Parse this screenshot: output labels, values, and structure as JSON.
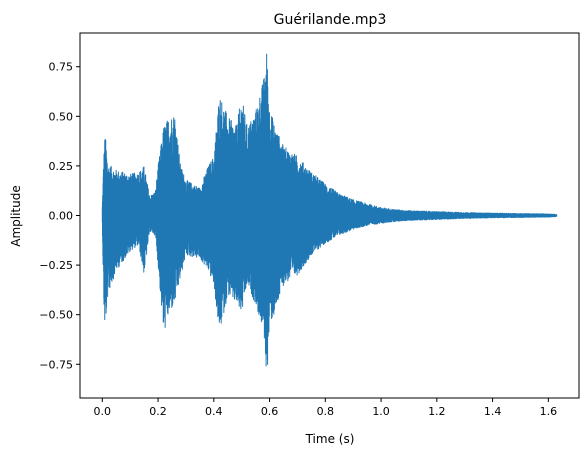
{
  "chart_data": {
    "type": "line",
    "title": "Guérilande.mp3",
    "xlabel": "Time (s)",
    "ylabel": "Amplitude",
    "xlim": [
      -0.08,
      1.71
    ],
    "ylim": [
      -0.92,
      0.92
    ],
    "x_ticks": [
      0.0,
      0.2,
      0.4,
      0.6,
      0.8,
      1.0,
      1.2,
      1.4,
      1.6
    ],
    "x_tick_labels": [
      "0.0",
      "0.2",
      "0.4",
      "0.6",
      "0.8",
      "1.0",
      "1.2",
      "1.4",
      "1.6"
    ],
    "y_ticks": [
      -0.75,
      -0.5,
      -0.25,
      0.0,
      0.25,
      0.5,
      0.75
    ],
    "y_tick_labels": [
      "−0.75",
      "−0.50",
      "−0.25",
      "0.00",
      "0.25",
      "0.50",
      "0.75"
    ],
    "grid": false,
    "series": [
      {
        "color": "#1f77b4",
        "envelope": {
          "time": [
            0.0,
            0.005,
            0.01,
            0.02,
            0.05,
            0.1,
            0.13,
            0.15,
            0.17,
            0.19,
            0.2,
            0.22,
            0.24,
            0.26,
            0.28,
            0.3,
            0.35,
            0.38,
            0.4,
            0.42,
            0.45,
            0.48,
            0.5,
            0.52,
            0.55,
            0.58,
            0.59,
            0.6,
            0.62,
            0.65,
            0.7,
            0.75,
            0.8,
            0.85,
            0.9,
            0.95,
            1.0,
            1.05,
            1.1,
            1.2,
            1.3,
            1.4,
            1.5,
            1.6,
            1.63
          ],
          "max": [
            0.05,
            0.3,
            0.42,
            0.26,
            0.23,
            0.21,
            0.22,
            0.25,
            0.1,
            0.12,
            0.25,
            0.45,
            0.5,
            0.52,
            0.26,
            0.18,
            0.14,
            0.25,
            0.3,
            0.62,
            0.5,
            0.45,
            0.6,
            0.45,
            0.53,
            0.7,
            0.84,
            0.55,
            0.45,
            0.35,
            0.3,
            0.22,
            0.16,
            0.11,
            0.08,
            0.06,
            0.04,
            0.03,
            0.025,
            0.02,
            0.015,
            0.012,
            0.01,
            0.008,
            0.005
          ],
          "min": [
            -0.05,
            -0.45,
            -0.59,
            -0.4,
            -0.28,
            -0.18,
            -0.15,
            -0.3,
            -0.08,
            -0.1,
            -0.25,
            -0.6,
            -0.5,
            -0.45,
            -0.32,
            -0.2,
            -0.22,
            -0.28,
            -0.35,
            -0.6,
            -0.4,
            -0.45,
            -0.5,
            -0.35,
            -0.45,
            -0.6,
            -0.84,
            -0.55,
            -0.5,
            -0.35,
            -0.3,
            -0.2,
            -0.14,
            -0.1,
            -0.07,
            -0.05,
            -0.04,
            -0.03,
            -0.025,
            -0.02,
            -0.015,
            -0.012,
            -0.01,
            -0.008,
            -0.005
          ]
        }
      }
    ]
  }
}
